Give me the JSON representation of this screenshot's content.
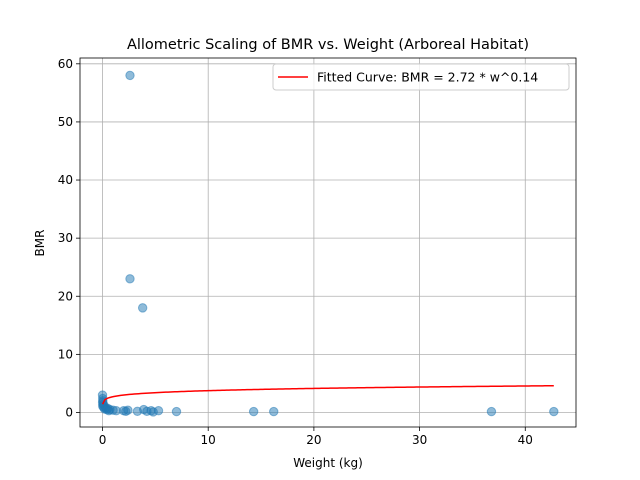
{
  "chart_data": {
    "type": "scatter",
    "title": "Allometric Scaling of BMR vs. Weight (Arboreal Habitat)",
    "xlabel": "Weight (kg)",
    "ylabel": "BMR",
    "xlim": [
      -2.13,
      44.8
    ],
    "ylim": [
      -2.5,
      61.0
    ],
    "xticks": [
      0,
      10,
      20,
      30,
      40
    ],
    "yticks": [
      0,
      10,
      20,
      30,
      40,
      50,
      60
    ],
    "grid": true,
    "legend_position": "top-right",
    "colors": {
      "points": "#1f77b4",
      "fit": "#ff0000"
    },
    "scatter_points": [
      {
        "x": 2.6,
        "y": 58.0
      },
      {
        "x": 2.6,
        "y": 23.0
      },
      {
        "x": 3.8,
        "y": 18.0
      },
      {
        "x": 0.0,
        "y": 3.0
      },
      {
        "x": 0.02,
        "y": 2.4
      },
      {
        "x": 0.03,
        "y": 2.0
      },
      {
        "x": 0.01,
        "y": 1.7
      },
      {
        "x": 0.05,
        "y": 1.4
      },
      {
        "x": 0.02,
        "y": 1.1
      },
      {
        "x": 0.1,
        "y": 0.9
      },
      {
        "x": 0.15,
        "y": 1.2
      },
      {
        "x": 0.3,
        "y": 0.8
      },
      {
        "x": 0.5,
        "y": 0.7
      },
      {
        "x": 0.7,
        "y": 0.5
      },
      {
        "x": 1.0,
        "y": 0.4
      },
      {
        "x": 0.2,
        "y": 0.6
      },
      {
        "x": 0.4,
        "y": 0.5
      },
      {
        "x": 0.6,
        "y": 0.3
      },
      {
        "x": 1.3,
        "y": 0.3
      },
      {
        "x": 2.0,
        "y": 0.3
      },
      {
        "x": 2.4,
        "y": 0.4
      },
      {
        "x": 2.2,
        "y": 0.2
      },
      {
        "x": 3.3,
        "y": 0.2
      },
      {
        "x": 3.9,
        "y": 0.5
      },
      {
        "x": 4.2,
        "y": 0.2
      },
      {
        "x": 4.6,
        "y": 0.3
      },
      {
        "x": 4.8,
        "y": 0.1
      },
      {
        "x": 5.3,
        "y": 0.3
      },
      {
        "x": 7.0,
        "y": 0.15
      },
      {
        "x": 14.3,
        "y": 0.15
      },
      {
        "x": 16.2,
        "y": 0.15
      },
      {
        "x": 36.8,
        "y": 0.15
      },
      {
        "x": 42.7,
        "y": 0.15
      }
    ],
    "fit_series": {
      "name": "Fitted Curve: BMR = 2.72 * w^0.14",
      "a": 2.72,
      "b": 0.14,
      "x_range": [
        0.01,
        42.7
      ]
    }
  }
}
